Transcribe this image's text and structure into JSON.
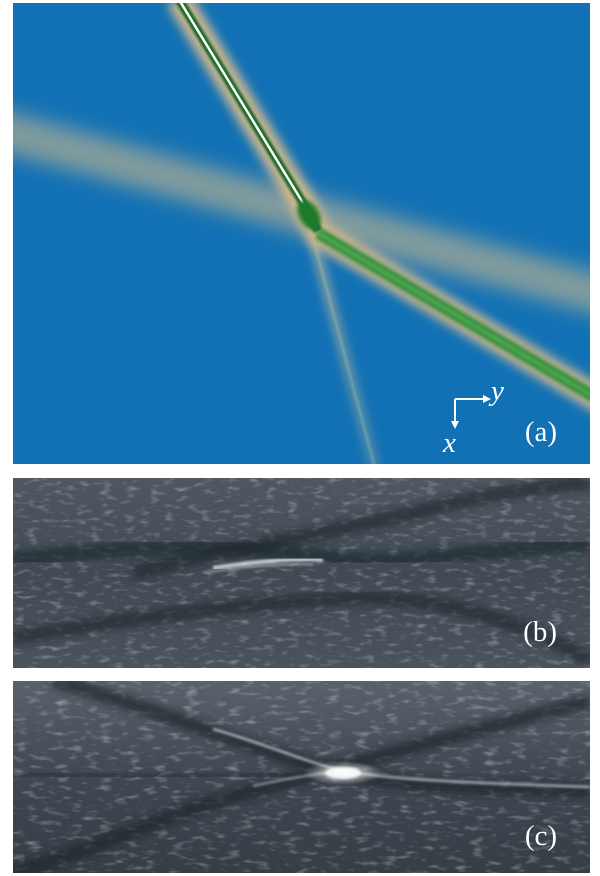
{
  "panels": {
    "a": {
      "label": "(a)"
    },
    "b": {
      "label": "(b)"
    },
    "c": {
      "label": "(c)"
    }
  },
  "axes": {
    "y_label": "y",
    "x_label": "x"
  },
  "colors": {
    "simulation_background": "#1271b4",
    "wave_green": "#2e8b3a",
    "wave_glow": "#e8c08a",
    "water_dark": "#2f3740",
    "water_mid": "#56606a",
    "foam": "#e9eef2"
  }
}
